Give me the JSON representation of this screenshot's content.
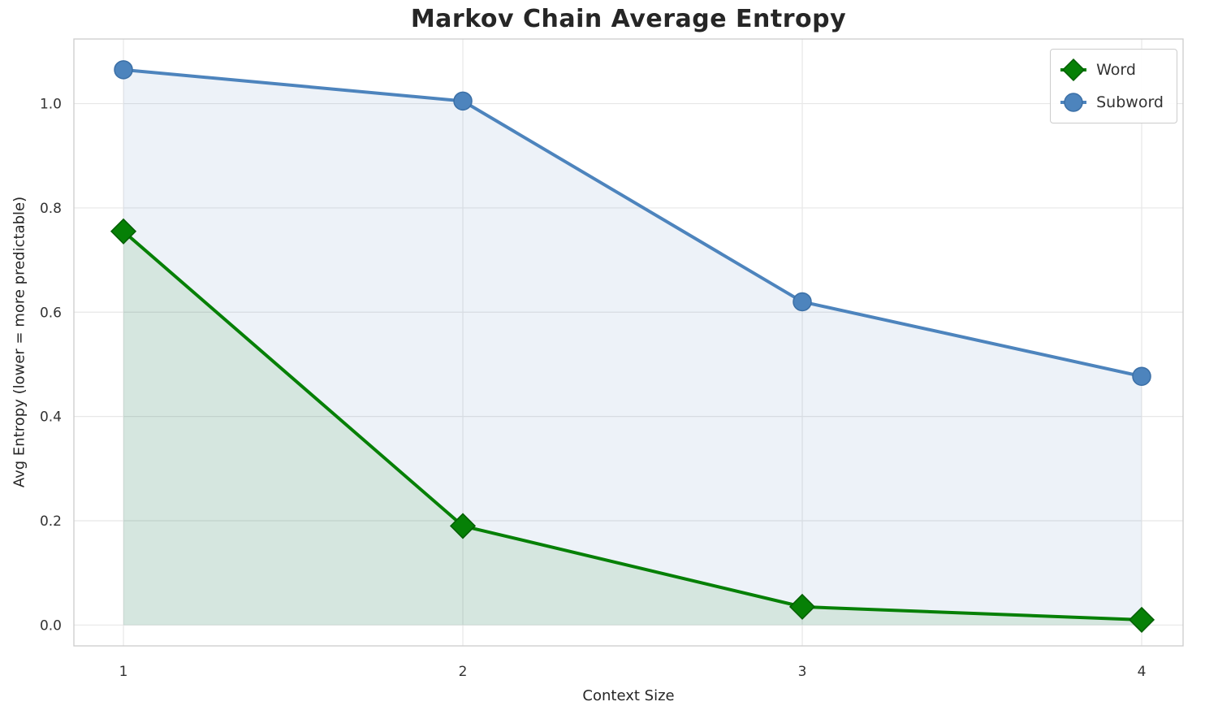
{
  "chart_data": {
    "type": "line",
    "title": "Markov Chain Average Entropy",
    "xlabel": "Context Size",
    "ylabel": "Avg Entropy (lower = more predictable)",
    "x": [
      1,
      2,
      3,
      4
    ],
    "series": [
      {
        "name": "Word",
        "values": [
          0.755,
          0.19,
          0.035,
          0.01
        ],
        "color": "#068006",
        "edge_color": "#045e04",
        "marker": "diamond",
        "area_fill": true
      },
      {
        "name": "Subword",
        "values": [
          1.065,
          1.005,
          0.62,
          0.477
        ],
        "color": "#4d84bd",
        "edge_color": "#3b6fa6",
        "marker": "circle",
        "area_fill": true
      }
    ],
    "xticks": [
      1,
      2,
      3,
      4
    ],
    "xtick_labels": [
      "1",
      "2",
      "3",
      "4"
    ],
    "yticks": [
      0.0,
      0.2,
      0.4,
      0.6,
      0.8,
      1.0
    ],
    "ytick_labels": [
      "0.0",
      "0.2",
      "0.4",
      "0.6",
      "0.8",
      "1.0"
    ],
    "xlim": [
      0.854,
      4.122
    ],
    "ylim": [
      -0.04,
      1.124
    ],
    "grid": true,
    "legend_position": "upper right",
    "fill_opacity": 0.1,
    "grid_color": "#e7e7e7",
    "frame_color": "#cccccc"
  }
}
